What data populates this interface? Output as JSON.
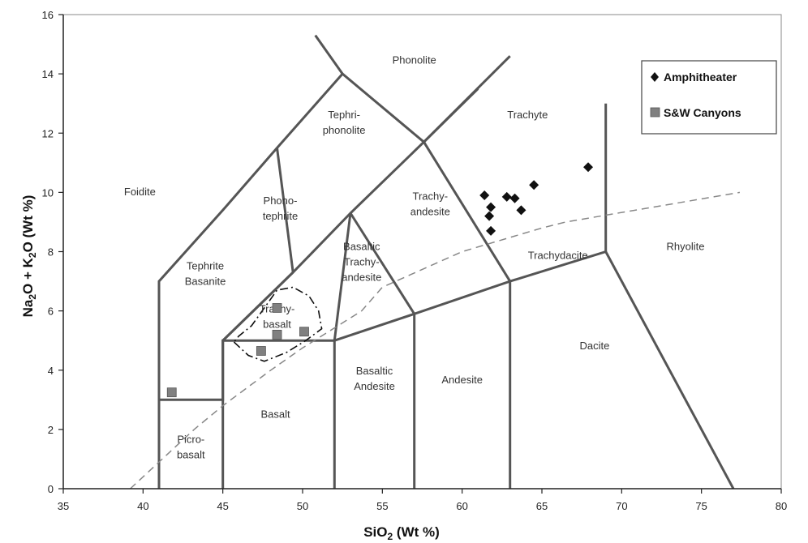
{
  "chart_data": {
    "type": "scatter",
    "xlabel": "SiO2 (Wt %)",
    "ylabel": "Na2O + K2O (Wt %)",
    "xlim": [
      35,
      80
    ],
    "ylim": [
      0,
      16
    ],
    "x_ticks": [
      "35",
      "40",
      "45",
      "50",
      "55",
      "60",
      "65",
      "70",
      "75",
      "80"
    ],
    "y_ticks": [
      "0",
      "2",
      "4",
      "6",
      "8",
      "10",
      "12",
      "14",
      "16"
    ],
    "grid": false,
    "legend_position": "top-right",
    "series": [
      {
        "name": "Amphitheater",
        "marker": "diamond",
        "color": "#111111",
        "points": [
          {
            "x": 61.4,
            "y": 9.9
          },
          {
            "x": 61.8,
            "y": 9.5
          },
          {
            "x": 61.7,
            "y": 9.2
          },
          {
            "x": 61.8,
            "y": 8.7
          },
          {
            "x": 62.8,
            "y": 9.85
          },
          {
            "x": 63.3,
            "y": 9.8
          },
          {
            "x": 63.7,
            "y": 9.4
          },
          {
            "x": 64.5,
            "y": 10.25
          },
          {
            "x": 67.9,
            "y": 10.85
          }
        ]
      },
      {
        "name": "S&W Canyons",
        "marker": "square",
        "color": "#808080",
        "points": [
          {
            "x": 41.8,
            "y": 3.25
          },
          {
            "x": 47.4,
            "y": 4.65
          },
          {
            "x": 48.4,
            "y": 5.2
          },
          {
            "x": 48.4,
            "y": 6.1
          },
          {
            "x": 50.1,
            "y": 5.3
          }
        ]
      }
    ],
    "field_labels": [
      {
        "lines": [
          "Phonolite"
        ],
        "x": 57.0,
        "y": 14.35
      },
      {
        "lines": [
          "Tephri-",
          "phonolite"
        ],
        "x": 52.6,
        "y": 12.5
      },
      {
        "lines": [
          "Foidite"
        ],
        "x": 39.8,
        "y": 9.9
      },
      {
        "lines": [
          "Phono-",
          "tephrite"
        ],
        "x": 48.6,
        "y": 9.6
      },
      {
        "lines": [
          "Trachy-",
          "andesite"
        ],
        "x": 58.0,
        "y": 9.75
      },
      {
        "lines": [
          "Trachyte"
        ],
        "x": 64.1,
        "y": 12.5
      },
      {
        "lines": [
          "Basaltic",
          "Trachy-",
          "andesite"
        ],
        "x": 53.7,
        "y": 8.05
      },
      {
        "lines": [
          "Tephrite",
          "Basanite"
        ],
        "x": 43.9,
        "y": 7.4
      },
      {
        "lines": [
          "Trachy-",
          "basalt"
        ],
        "x": 48.4,
        "y": 5.95
      },
      {
        "lines": [
          "Trachydacite"
        ],
        "x": 66.0,
        "y": 7.75
      },
      {
        "lines": [
          "Rhyolite"
        ],
        "x": 74.0,
        "y": 8.05
      },
      {
        "lines": [
          "Dacite"
        ],
        "x": 68.3,
        "y": 4.7
      },
      {
        "lines": [
          "Andesite"
        ],
        "x": 60.0,
        "y": 3.55
      },
      {
        "lines": [
          "Basaltic",
          "Andesite"
        ],
        "x": 54.5,
        "y": 3.85
      },
      {
        "lines": [
          "Basalt"
        ],
        "x": 48.3,
        "y": 2.4
      },
      {
        "lines": [
          "Picro-",
          "basalt"
        ],
        "x": 43.0,
        "y": 1.55
      }
    ],
    "tas_boundaries": [
      [
        [
          41,
          0
        ],
        [
          41,
          7
        ],
        [
          45,
          9.4
        ],
        [
          48.4,
          11.5
        ],
        [
          52.5,
          14
        ],
        [
          57.6,
          11.7
        ],
        [
          63,
          14.6
        ]
      ],
      [
        [
          41,
          3
        ],
        [
          45,
          3
        ],
        [
          45,
          5
        ],
        [
          52,
          5
        ],
        [
          52,
          0
        ]
      ],
      [
        [
          45,
          0
        ],
        [
          45,
          5
        ],
        [
          49.4,
          7.3
        ],
        [
          53,
          9.3
        ],
        [
          57.6,
          11.7
        ],
        [
          61,
          13.5
        ]
      ],
      [
        [
          45,
          5
        ],
        [
          49.4,
          7.3
        ]
      ],
      [
        [
          48.4,
          11.5
        ],
        [
          49.4,
          7.3
        ]
      ],
      [
        [
          53,
          9.3
        ],
        [
          52,
          5
        ]
      ],
      [
        [
          52,
          5
        ],
        [
          57,
          5.9
        ],
        [
          57,
          0
        ]
      ],
      [
        [
          57,
          5.9
        ],
        [
          63,
          7
        ],
        [
          63,
          0
        ]
      ],
      [
        [
          63,
          7
        ],
        [
          69,
          8
        ],
        [
          69,
          13
        ]
      ],
      [
        [
          69,
          8
        ],
        [
          77,
          0
        ]
      ],
      [
        [
          57.6,
          11.7
        ],
        [
          63,
          7
        ]
      ],
      [
        [
          53,
          9.3
        ],
        [
          57,
          5.9
        ]
      ],
      [
        [
          50.8,
          15.3
        ],
        [
          52.5,
          14
        ]
      ]
    ],
    "alkaline_divide": [
      [
        39.2,
        0
      ],
      [
        40,
        0.4
      ],
      [
        43.2,
        2
      ],
      [
        45,
        2.8
      ],
      [
        48,
        4
      ],
      [
        50,
        4.75
      ],
      [
        53.7,
        6
      ],
      [
        55,
        6.8
      ],
      [
        60,
        8
      ],
      [
        65,
        8.8
      ],
      [
        66.5,
        9
      ],
      [
        77.4,
        10
      ]
    ],
    "enclosure_outline": [
      [
        45.7,
        4.95
      ],
      [
        46.6,
        4.5
      ],
      [
        47.6,
        4.3
      ],
      [
        49.0,
        4.6
      ],
      [
        50.2,
        5.0
      ],
      [
        51.2,
        5.4
      ],
      [
        51.0,
        6.0
      ],
      [
        50.4,
        6.5
      ],
      [
        49.4,
        6.8
      ],
      [
        48.4,
        6.7
      ],
      [
        47.6,
        6.1
      ],
      [
        46.8,
        5.5
      ],
      [
        46.0,
        5.15
      ],
      [
        45.7,
        4.95
      ]
    ]
  }
}
